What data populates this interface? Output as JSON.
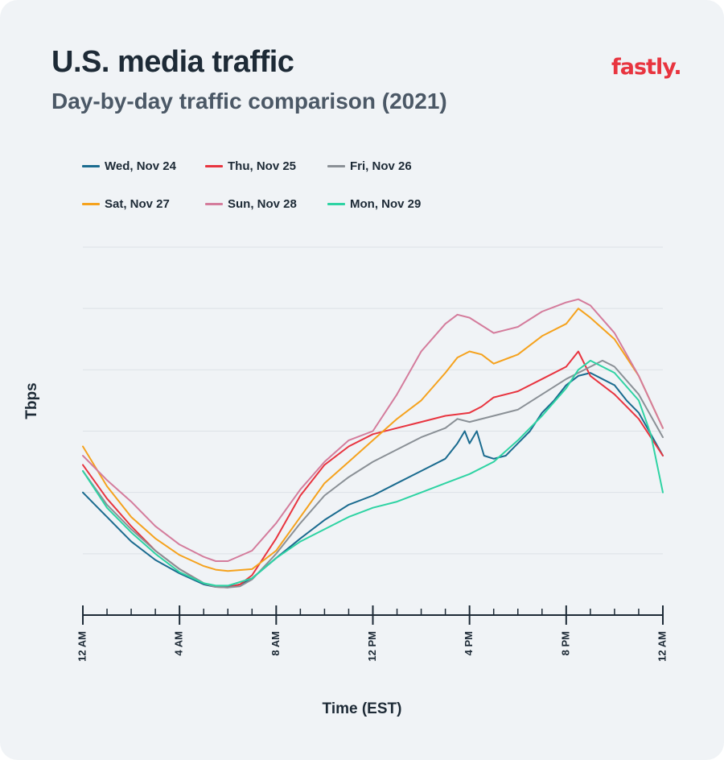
{
  "header": {
    "title": "U.S. media traffic",
    "subtitle": "Day-by-day traffic comparison (2021)",
    "logo_text": "fastly."
  },
  "colors": {
    "background": "#f0f3f6",
    "gridline": "#dde2e7",
    "axis": "#1d2a36",
    "brand": "#e8343f"
  },
  "chart_data": {
    "type": "line",
    "title": "U.S. media traffic",
    "subtitle": "Day-by-day traffic comparison (2021)",
    "xlabel": "Time (EST)",
    "ylabel": "Tbps",
    "x_unit": "hours since 12 AM",
    "x_ticks": [
      {
        "x": 0,
        "label": "12 AM"
      },
      {
        "x": 4,
        "label": "4 AM"
      },
      {
        "x": 8,
        "label": "8 AM"
      },
      {
        "x": 12,
        "label": "12 PM"
      },
      {
        "x": 16,
        "label": "4 PM"
      },
      {
        "x": 20,
        "label": "8 PM"
      },
      {
        "x": 24,
        "label": "12 AM"
      }
    ],
    "xlim": [
      0,
      24
    ],
    "ylim": [
      0,
      6
    ],
    "y_gridlines": [
      1,
      2,
      3,
      4,
      5,
      6
    ],
    "y_tick_labels_shown": false,
    "grid": true,
    "legend_position": "top",
    "series": [
      {
        "name": "Wed, Nov 24",
        "color": "#1a6b8f",
        "x": [
          0,
          0.5,
          1,
          1.5,
          2,
          3,
          4,
          5,
          5.5,
          6,
          6.5,
          7,
          8,
          9,
          10,
          11,
          12,
          13,
          14,
          15,
          15.5,
          15.8,
          16,
          16.3,
          16.6,
          17,
          17.5,
          18,
          18.5,
          19,
          19.5,
          20,
          20.5,
          21,
          21.5,
          22,
          22.5,
          23,
          23.5,
          24
        ],
        "y": [
          2.0,
          1.8,
          1.6,
          1.4,
          1.2,
          0.9,
          0.68,
          0.5,
          0.46,
          0.46,
          0.5,
          0.6,
          0.93,
          1.25,
          1.55,
          1.8,
          1.95,
          2.15,
          2.35,
          2.55,
          2.8,
          3.0,
          2.8,
          3.0,
          2.6,
          2.55,
          2.6,
          2.8,
          3.0,
          3.3,
          3.5,
          3.75,
          3.9,
          3.95,
          3.85,
          3.75,
          3.5,
          3.3,
          2.95,
          2.6
        ]
      },
      {
        "name": "Thu, Nov 25",
        "color": "#e8343f",
        "x": [
          0,
          1,
          2,
          3,
          4,
          5,
          5.5,
          6,
          6.5,
          7,
          8,
          9,
          10,
          11,
          12,
          13,
          14,
          15,
          16,
          16.5,
          17,
          18,
          19,
          20,
          20.5,
          21,
          22,
          23,
          24
        ],
        "y": [
          2.45,
          1.9,
          1.45,
          1.05,
          0.75,
          0.52,
          0.46,
          0.45,
          0.5,
          0.65,
          1.25,
          1.95,
          2.45,
          2.75,
          2.95,
          3.05,
          3.15,
          3.25,
          3.3,
          3.4,
          3.55,
          3.65,
          3.85,
          4.05,
          4.3,
          3.9,
          3.6,
          3.2,
          2.6
        ]
      },
      {
        "name": "Fri, Nov 26",
        "color": "#8a9096",
        "x": [
          0,
          1,
          2,
          3,
          4,
          5,
          5.5,
          6,
          6.5,
          7,
          8,
          9,
          10,
          11,
          12,
          13,
          14,
          15,
          15.5,
          16,
          17,
          18,
          19,
          20,
          21,
          21.5,
          22,
          23,
          24
        ],
        "y": [
          2.35,
          1.8,
          1.4,
          1.05,
          0.75,
          0.52,
          0.46,
          0.45,
          0.47,
          0.58,
          1.0,
          1.5,
          1.95,
          2.25,
          2.5,
          2.7,
          2.9,
          3.05,
          3.2,
          3.15,
          3.25,
          3.35,
          3.6,
          3.85,
          4.05,
          4.15,
          4.05,
          3.6,
          2.9
        ]
      },
      {
        "name": "Sat, Nov 27",
        "color": "#f5a21d",
        "x": [
          0,
          1,
          2,
          3,
          4,
          5,
          5.5,
          6,
          7,
          8,
          9,
          10,
          11,
          12,
          13,
          14,
          15,
          15.5,
          16,
          16.5,
          17,
          18,
          19,
          20,
          20.5,
          21,
          22,
          23,
          24
        ],
        "y": [
          2.75,
          2.1,
          1.6,
          1.25,
          0.98,
          0.8,
          0.74,
          0.72,
          0.75,
          1.05,
          1.6,
          2.15,
          2.5,
          2.85,
          3.2,
          3.5,
          3.95,
          4.2,
          4.3,
          4.25,
          4.1,
          4.25,
          4.55,
          4.75,
          5.0,
          4.85,
          4.5,
          3.9,
          3.05
        ]
      },
      {
        "name": "Sun, Nov 28",
        "color": "#d47c9c",
        "x": [
          0,
          1,
          2,
          3,
          4,
          5,
          5.5,
          6,
          7,
          8,
          9,
          10,
          11,
          12,
          13,
          14,
          15,
          15.5,
          16,
          17,
          18,
          19,
          20,
          20.5,
          21,
          22,
          23,
          24
        ],
        "y": [
          2.6,
          2.2,
          1.85,
          1.45,
          1.15,
          0.95,
          0.88,
          0.88,
          1.05,
          1.5,
          2.05,
          2.5,
          2.85,
          3.0,
          3.6,
          4.3,
          4.75,
          4.9,
          4.85,
          4.6,
          4.7,
          4.95,
          5.1,
          5.15,
          5.05,
          4.6,
          3.9,
          3.05
        ]
      },
      {
        "name": "Mon, Nov 29",
        "color": "#2ed3a3",
        "x": [
          0,
          1,
          2,
          3,
          4,
          5,
          5.5,
          6,
          7,
          8,
          9,
          10,
          11,
          12,
          13,
          14,
          15,
          16,
          17,
          18,
          19,
          20,
          20.5,
          21,
          22,
          23,
          23.5,
          24
        ],
        "y": [
          2.35,
          1.75,
          1.35,
          1.0,
          0.7,
          0.52,
          0.48,
          0.48,
          0.6,
          0.93,
          1.2,
          1.4,
          1.6,
          1.75,
          1.85,
          2.0,
          2.15,
          2.3,
          2.5,
          2.85,
          3.25,
          3.7,
          4.0,
          4.15,
          3.95,
          3.5,
          2.95,
          2.0
        ]
      }
    ]
  }
}
